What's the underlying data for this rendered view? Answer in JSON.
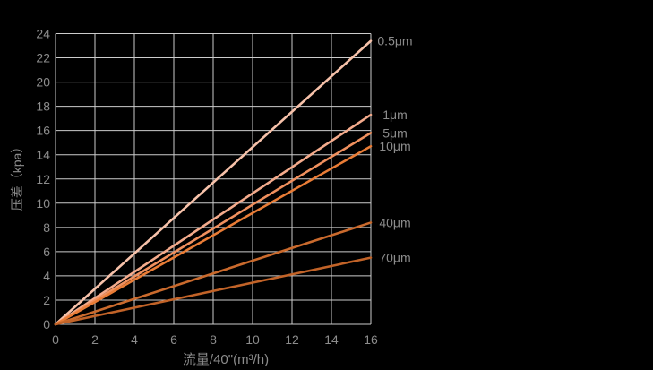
{
  "figure": {
    "background": "#000000",
    "grid_color": "#cccccc",
    "text_color": "#8c8c8c"
  },
  "chart_data": {
    "type": "line",
    "title": "",
    "xlabel": "流量/40\"(m³/h)",
    "ylabel": "压差（kpa）",
    "xlim": [
      0,
      16
    ],
    "ylim": [
      0,
      24
    ],
    "x_ticks": [
      0,
      2,
      4,
      6,
      8,
      10,
      12,
      14,
      16
    ],
    "y_ticks": [
      0,
      2,
      4,
      6,
      8,
      10,
      12,
      14,
      16,
      18,
      20,
      22,
      24
    ],
    "grid": true,
    "legend_position": "labels-at-line-ends-right",
    "series": [
      {
        "name": "0.5μm",
        "color": "#f7c2aa",
        "x": [
          0,
          16
        ],
        "y": [
          0,
          23.4
        ]
      },
      {
        "name": "1μm",
        "color": "#f4ab8c",
        "x": [
          0,
          16
        ],
        "y": [
          0,
          17.3
        ]
      },
      {
        "name": "5μm",
        "color": "#f0905e",
        "x": [
          0,
          16
        ],
        "y": [
          0,
          15.8
        ]
      },
      {
        "name": "10μm",
        "color": "#e97c36",
        "x": [
          0,
          16
        ],
        "y": [
          0,
          14.7
        ]
      },
      {
        "name": "40μm",
        "color": "#ca6a2d",
        "x": [
          0,
          16
        ],
        "y": [
          0,
          8.4
        ]
      },
      {
        "name": "70μm",
        "color": "#c26328",
        "x": [
          0,
          16
        ],
        "y": [
          0,
          5.5
        ]
      }
    ]
  }
}
